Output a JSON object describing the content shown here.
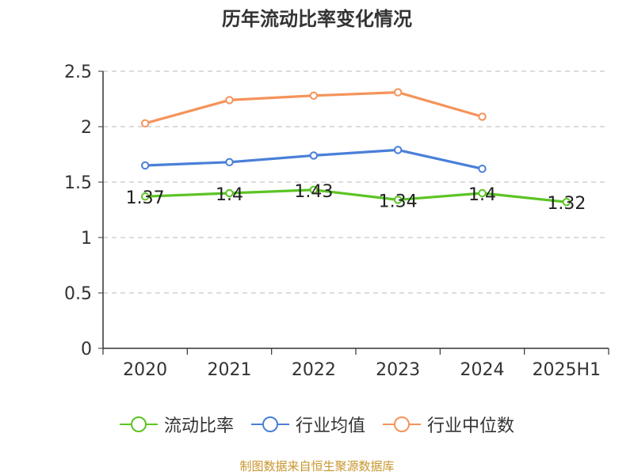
{
  "page": {
    "title": "历年流动比率变化情况",
    "source": "制图数据来自恒生聚源数据库"
  },
  "chart_data": {
    "type": "line",
    "title": "历年流动比率变化情况",
    "categories": [
      "2020",
      "2021",
      "2022",
      "2023",
      "2024",
      "2025H1"
    ],
    "ylim": [
      0,
      2.5
    ],
    "yticks": [
      0,
      0.5,
      1,
      1.5,
      2,
      2.5
    ],
    "ytick_labels": [
      "0",
      "0.5",
      "1",
      "1.5",
      "2",
      "2.5"
    ],
    "grid": true,
    "legend_position": "bottom",
    "series": [
      {
        "name": "流动比率",
        "color": "#5cc424",
        "values": [
          1.37,
          1.4,
          1.43,
          1.34,
          1.4,
          1.32
        ],
        "labels": [
          "1.37",
          "1.4",
          "1.43",
          "1.34",
          "1.4",
          "1.32"
        ]
      },
      {
        "name": "行业均值",
        "color": "#4a7fd8",
        "values": [
          1.65,
          1.68,
          1.74,
          1.79,
          1.62,
          null
        ]
      },
      {
        "name": "行业中位数",
        "color": "#f5935a",
        "values": [
          2.03,
          2.24,
          2.28,
          2.31,
          2.09,
          null
        ]
      }
    ]
  }
}
